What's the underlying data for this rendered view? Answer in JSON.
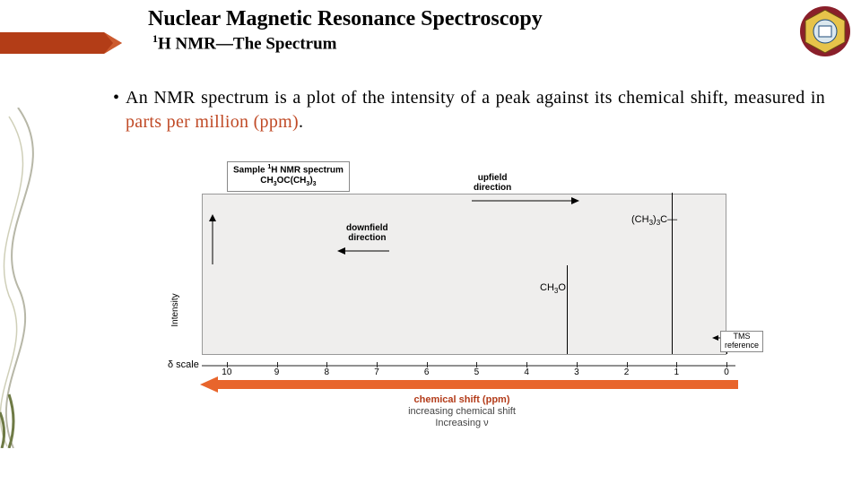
{
  "title": "Nuclear Magnetic Resonance Spectroscopy",
  "subtitle_prefix_super": "1",
  "subtitle": "H NMR—The Spectrum",
  "bullet": "•",
  "body_pre": "An NMR spectrum is a plot of the intensity of a peak against its chemical shift, measured in ",
  "highlight": "parts per million (ppm)",
  "body_post": ".",
  "sample_label_line1_pre": "Sample ",
  "sample_label_line1_sup": "1",
  "sample_label_line1_post": "H NMR spectrum",
  "sample_label_line2_a": "CH",
  "sample_label_line2_a_sub": "3",
  "sample_label_line2_b": "OC(CH",
  "sample_label_line2_b_sub": "3",
  "sample_label_line2_c": ")",
  "sample_label_line2_c_sub": "3",
  "ylabel": "Intensity",
  "upfield_line1": "upfield",
  "upfield_line2": "direction",
  "downfield_line1": "downfield",
  "downfield_line2": "direction",
  "peak_label_left_a": "CH",
  "peak_label_left_a_sub": "3",
  "peak_label_left_b": "O",
  "peak_label_right_a": "(CH",
  "peak_label_right_a_sub": "3",
  "peak_label_right_b": ")",
  "peak_label_right_b_sub": "3",
  "peak_label_right_c": "C—",
  "tms_line1": "TMS",
  "tms_line2": "reference",
  "delta_label": "δ scale",
  "ticks": [
    "10",
    "9",
    "8",
    "7",
    "6",
    "5",
    "4",
    "3",
    "2",
    "1",
    "0"
  ],
  "cs_label": "chemical shift (ppm)",
  "inc1": "increasing chemical shift",
  "inc2": "Increasing ν",
  "colors": {
    "ribbon": "#b33d17",
    "ribbon_light": "#cc5a2e",
    "highlight": "#c04a26",
    "plot_bg": "#efeeed",
    "orange_arrow": "#e8652c",
    "logo_outer": "#8a1f2a",
    "logo_mid": "#e6c34a",
    "logo_inner": "#1d4a7a"
  },
  "chart": {
    "type": "nmr-spectrum",
    "xlim": [
      0,
      10.5
    ],
    "x_direction": "right-to-left-increasing",
    "peaks": [
      {
        "ppm": 3.2,
        "rel_height": 0.55,
        "assignment": "CH3O"
      },
      {
        "ppm": 1.1,
        "rel_height": 1.0,
        "assignment": "(CH3)3C"
      },
      {
        "ppm": 0.0,
        "rel_height": 0.12,
        "assignment": "TMS"
      }
    ],
    "background_color": "#efeeed",
    "border_color": "#999999",
    "tick_step": 1
  }
}
